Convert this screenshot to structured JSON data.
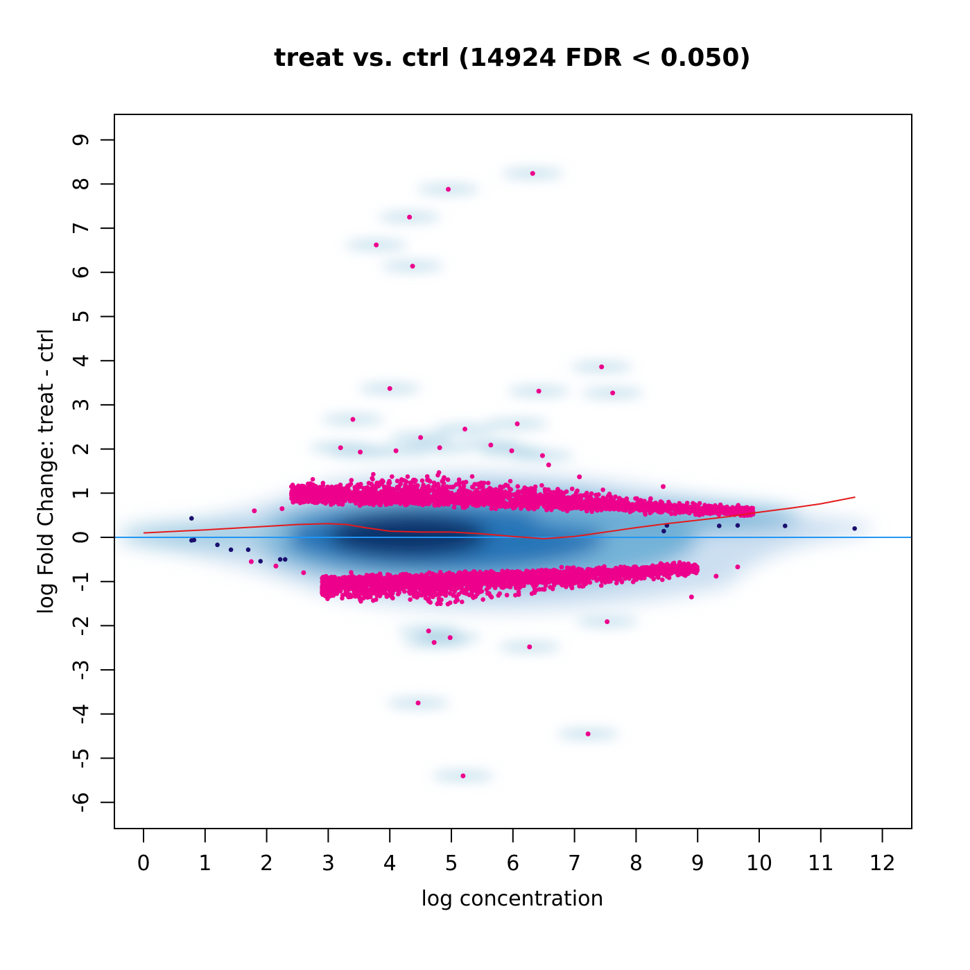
{
  "chart_data": {
    "type": "scatter",
    "title": "treat vs. ctrl (14924 FDR < 0.050)",
    "xlabel": "log concentration",
    "ylabel": "log Fold Change: treat - ctrl",
    "xlim": [
      -0.5,
      12.5
    ],
    "ylim": [
      -6.6,
      9.6
    ],
    "x_ticks": [
      "0",
      "1",
      "2",
      "3",
      "4",
      "5",
      "6",
      "7",
      "8",
      "9",
      "10",
      "11",
      "12"
    ],
    "y_ticks": [
      "-6",
      "-5",
      "-4",
      "-3",
      "-2",
      "-1",
      "0",
      "1",
      "2",
      "3",
      "4",
      "5",
      "6",
      "7",
      "8",
      "9"
    ],
    "reference_line_y": 0,
    "colors": {
      "significant": "#EC008C",
      "not_significant": "#1A0F6E",
      "density": "#08306B",
      "loess": "#E41A1C",
      "reference": "#2196F3"
    },
    "density_smooth": "blue smoothed scatter background",
    "dense_bands": [
      {
        "name": "FDR < 0.050 (up)",
        "x_range": [
          2.4,
          9.9
        ],
        "center_start": 0.85,
        "center_end": 0.55
      },
      {
        "name": "FDR < 0.050 (down)",
        "x_range": [
          2.9,
          9.0
        ],
        "center_start": -0.95,
        "center_end": -0.65
      }
    ],
    "significant_outliers": [
      [
        6.32,
        8.24
      ],
      [
        4.95,
        7.88
      ],
      [
        4.32,
        7.25
      ],
      [
        3.78,
        6.62
      ],
      [
        4.37,
        6.14
      ],
      [
        7.44,
        3.86
      ],
      [
        7.62,
        3.27
      ],
      [
        6.42,
        3.31
      ],
      [
        4.0,
        3.37
      ],
      [
        3.4,
        2.67
      ],
      [
        6.07,
        2.57
      ],
      [
        5.22,
        2.45
      ],
      [
        4.5,
        2.26
      ],
      [
        5.64,
        2.09
      ],
      [
        4.81,
        2.03
      ],
      [
        3.2,
        2.03
      ],
      [
        5.98,
        1.96
      ],
      [
        4.1,
        1.96
      ],
      [
        3.52,
        1.93
      ],
      [
        6.48,
        1.85
      ],
      [
        6.58,
        1.64
      ],
      [
        7.08,
        1.37
      ],
      [
        8.44,
        1.15
      ],
      [
        1.8,
        0.6
      ],
      [
        2.25,
        0.65
      ],
      [
        2.6,
        -0.8
      ],
      [
        2.15,
        -0.65
      ],
      [
        1.75,
        -0.55
      ],
      [
        9.65,
        -0.67
      ],
      [
        9.3,
        -0.88
      ],
      [
        8.9,
        -1.35
      ],
      [
        4.72,
        -2.38
      ],
      [
        4.98,
        -2.27
      ],
      [
        4.63,
        -2.12
      ],
      [
        6.27,
        -2.48
      ],
      [
        7.53,
        -1.91
      ],
      [
        4.46,
        -3.75
      ],
      [
        7.22,
        -4.45
      ],
      [
        5.19,
        -5.4
      ]
    ],
    "nonsignificant_points": [
      [
        0.78,
        0.43
      ],
      [
        0.82,
        -0.06
      ],
      [
        0.78,
        -0.07
      ],
      [
        1.2,
        -0.17
      ],
      [
        1.42,
        -0.28
      ],
      [
        1.7,
        -0.28
      ],
      [
        1.9,
        -0.54
      ],
      [
        2.22,
        -0.5
      ],
      [
        2.3,
        -0.5
      ],
      [
        8.45,
        0.14
      ],
      [
        8.5,
        0.27
      ],
      [
        9.35,
        0.26
      ],
      [
        9.65,
        0.27
      ],
      [
        10.42,
        0.26
      ],
      [
        11.55,
        0.2
      ]
    ],
    "loess_fit": [
      [
        0,
        0.1
      ],
      [
        1,
        0.17
      ],
      [
        2,
        0.25
      ],
      [
        2.5,
        0.29
      ],
      [
        3,
        0.31
      ],
      [
        3.3,
        0.29
      ],
      [
        3.6,
        0.22
      ],
      [
        4,
        0.14
      ],
      [
        4.5,
        0.12
      ],
      [
        5,
        0.12
      ],
      [
        5.5,
        0.08
      ],
      [
        6,
        0.02
      ],
      [
        6.5,
        -0.03
      ],
      [
        7,
        0.02
      ],
      [
        7.5,
        0.12
      ],
      [
        8,
        0.22
      ],
      [
        8.5,
        0.31
      ],
      [
        9,
        0.39
      ],
      [
        9.5,
        0.47
      ],
      [
        10,
        0.57
      ],
      [
        10.5,
        0.66
      ],
      [
        11,
        0.76
      ],
      [
        11.56,
        0.91
      ]
    ]
  }
}
